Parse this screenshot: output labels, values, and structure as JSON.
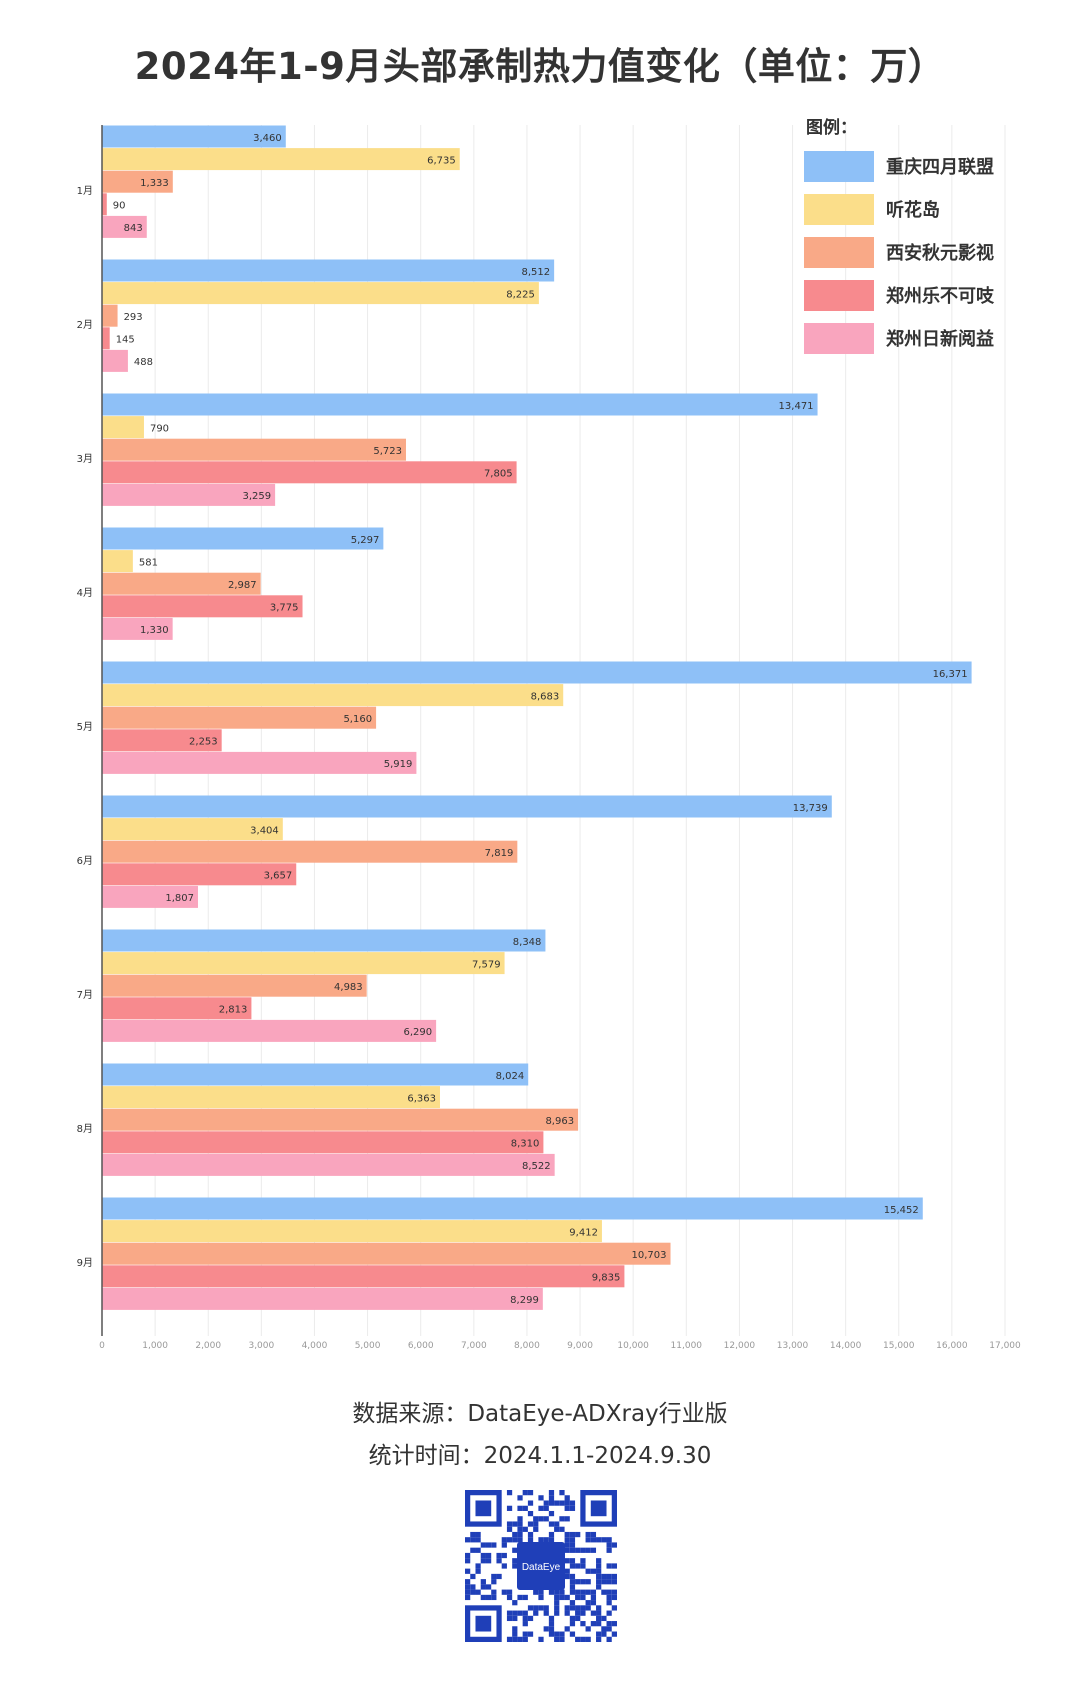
{
  "title": "2024年1-9月头部承制热力值变化（单位：万）",
  "chart_data": {
    "type": "bar",
    "orientation": "horizontal",
    "categories": [
      "1月",
      "2月",
      "3月",
      "4月",
      "5月",
      "6月",
      "7月",
      "8月",
      "9月"
    ],
    "series": [
      {
        "name": "重庆四月联盟",
        "color": "#8EC0F7",
        "values": [
          3460,
          8512,
          13471,
          5297,
          16371,
          13739,
          8348,
          8024,
          15452
        ]
      },
      {
        "name": "听花岛",
        "color": "#FBDE8A",
        "values": [
          6735,
          8225,
          790,
          581,
          8683,
          3404,
          7579,
          6363,
          9412
        ]
      },
      {
        "name": "西安秋元影视",
        "color": "#F9A987",
        "values": [
          1333,
          293,
          5723,
          2987,
          5160,
          7819,
          4983,
          8963,
          10703
        ]
      },
      {
        "name": "郑州乐不可吱",
        "color": "#F78A8E",
        "values": [
          90,
          145,
          7805,
          3775,
          2253,
          3657,
          2813,
          8310,
          9835
        ]
      },
      {
        "name": "郑州日新阅益",
        "color": "#F9A5BE",
        "values": [
          843,
          488,
          3259,
          1330,
          5919,
          1807,
          6290,
          8522,
          8299
        ]
      }
    ],
    "x_ticks": [
      "0",
      "1,000",
      "2,000",
      "3,000",
      "4,000",
      "5,000",
      "6,000",
      "7,000",
      "8,000",
      "9,000",
      "10,000",
      "11,000",
      "12,000",
      "13,000",
      "14,000",
      "15,000",
      "16,000",
      "17,000"
    ],
    "xlim": [
      0,
      17000
    ],
    "grid": true,
    "legend_title": "图例：",
    "legend_position": "top-right",
    "data_labels": true
  },
  "footer": {
    "source": "数据来源：DataEye-ADXray行业版",
    "period": "统计时间：2024.1.1-2024.9.30"
  },
  "qr": {
    "logo_text": "DataEye",
    "color": "#1F3FB8"
  }
}
